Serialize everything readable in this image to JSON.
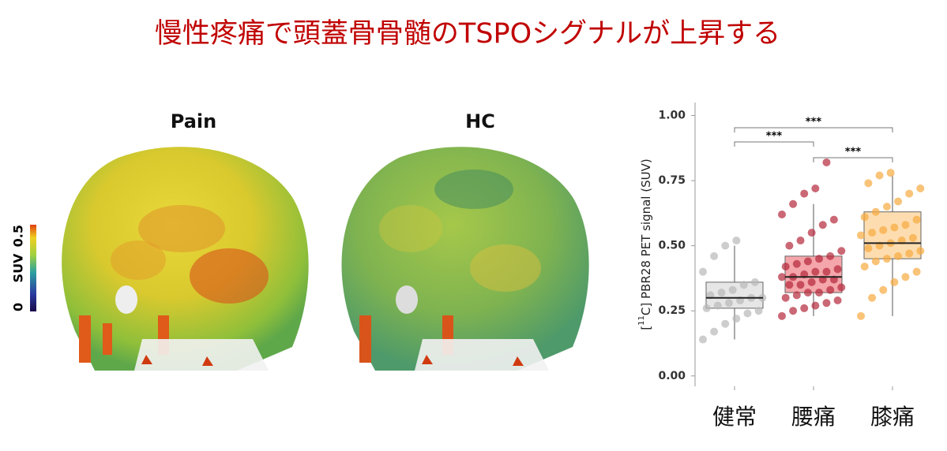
{
  "figure": {
    "title": "慢性疼痛で頭蓋骨骨髄のTSPOシグナルが上昇する",
    "panels": [
      "Pain",
      "HC"
    ],
    "colorbar": {
      "label": "SUV",
      "min": "0",
      "max": "0.5"
    }
  },
  "chart_data": {
    "type": "box",
    "ylabel": {
      "pre": "[",
      "sup": "11",
      "post": "C] PBR28 PET signal (SUV)"
    },
    "categories": [
      "健常",
      "腰痛",
      "膝痛"
    ],
    "ylim": [
      -0.04,
      1.05
    ],
    "yticks": [
      {
        "value": 0,
        "label": "0.00"
      },
      {
        "value": 0.25,
        "label": "0.25"
      },
      {
        "value": 0.5,
        "label": "0.50"
      },
      {
        "value": 0.75,
        "label": "0.75"
      },
      {
        "value": 1,
        "label": "1.00"
      }
    ],
    "boxes": [
      {
        "color": "#e6e6e6",
        "point_color": "#b8b8b8",
        "whisker_low": 0.14,
        "q1": 0.26,
        "median": 0.3,
        "q3": 0.36,
        "whisker_high": 0.5,
        "points": [
          0.14,
          0.17,
          0.2,
          0.22,
          0.24,
          0.25,
          0.26,
          0.27,
          0.28,
          0.29,
          0.3,
          0.3,
          0.31,
          0.32,
          0.33,
          0.35,
          0.36,
          0.4,
          0.46,
          0.5,
          0.52
        ]
      },
      {
        "color": "#f4a6aa",
        "point_color": "#b5283a",
        "whisker_low": 0.23,
        "q1": 0.32,
        "median": 0.38,
        "q3": 0.46,
        "whisker_high": 0.66,
        "points": [
          0.23,
          0.25,
          0.26,
          0.27,
          0.28,
          0.29,
          0.3,
          0.31,
          0.32,
          0.32,
          0.33,
          0.34,
          0.35,
          0.35,
          0.36,
          0.37,
          0.37,
          0.38,
          0.38,
          0.39,
          0.4,
          0.4,
          0.41,
          0.42,
          0.43,
          0.44,
          0.45,
          0.46,
          0.48,
          0.5,
          0.52,
          0.55,
          0.58,
          0.6,
          0.62,
          0.66,
          0.7,
          0.72,
          0.82
        ]
      },
      {
        "color": "#fdddb0",
        "point_color": "#f7a93e",
        "whisker_low": 0.23,
        "q1": 0.45,
        "median": 0.51,
        "q3": 0.63,
        "whisker_high": 0.77,
        "points": [
          0.23,
          0.3,
          0.33,
          0.36,
          0.38,
          0.4,
          0.42,
          0.44,
          0.45,
          0.46,
          0.47,
          0.48,
          0.49,
          0.5,
          0.51,
          0.52,
          0.53,
          0.54,
          0.55,
          0.56,
          0.57,
          0.58,
          0.6,
          0.61,
          0.63,
          0.65,
          0.67,
          0.7,
          0.72,
          0.74,
          0.77,
          0.78
        ]
      }
    ],
    "comparisons": [
      {
        "between": [
          "健常",
          "腰痛"
        ],
        "label": "***"
      },
      {
        "between": [
          "腰痛",
          "膝痛"
        ],
        "label": "***"
      },
      {
        "between": [
          "健常",
          "膝痛"
        ],
        "label": "***"
      }
    ]
  }
}
